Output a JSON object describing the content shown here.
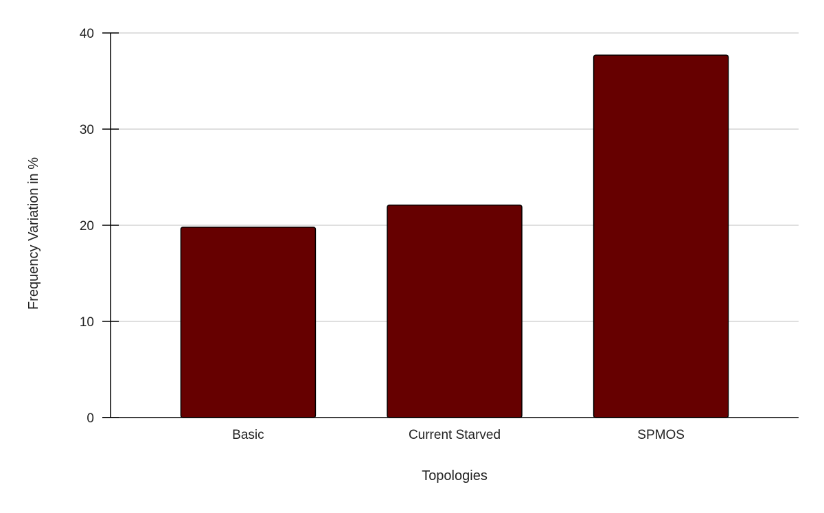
{
  "chart_data": {
    "type": "bar",
    "title": "",
    "xlabel": "Topologies",
    "ylabel": "Frequency Variation in %",
    "categories": [
      "Basic",
      "Current Starved",
      "SPMOS"
    ],
    "series": [
      {
        "values": [
          19.8,
          22.1,
          37.7
        ]
      }
    ],
    "ylim": [
      0,
      40
    ],
    "yticks": [
      "0",
      "10",
      "20",
      "30",
      "40"
    ],
    "grid": true,
    "legend": "none",
    "colors": {
      "bar_fill": "#660000",
      "bar_stroke": "#000000",
      "grid": "#cccccc",
      "axis": "#000000"
    }
  }
}
